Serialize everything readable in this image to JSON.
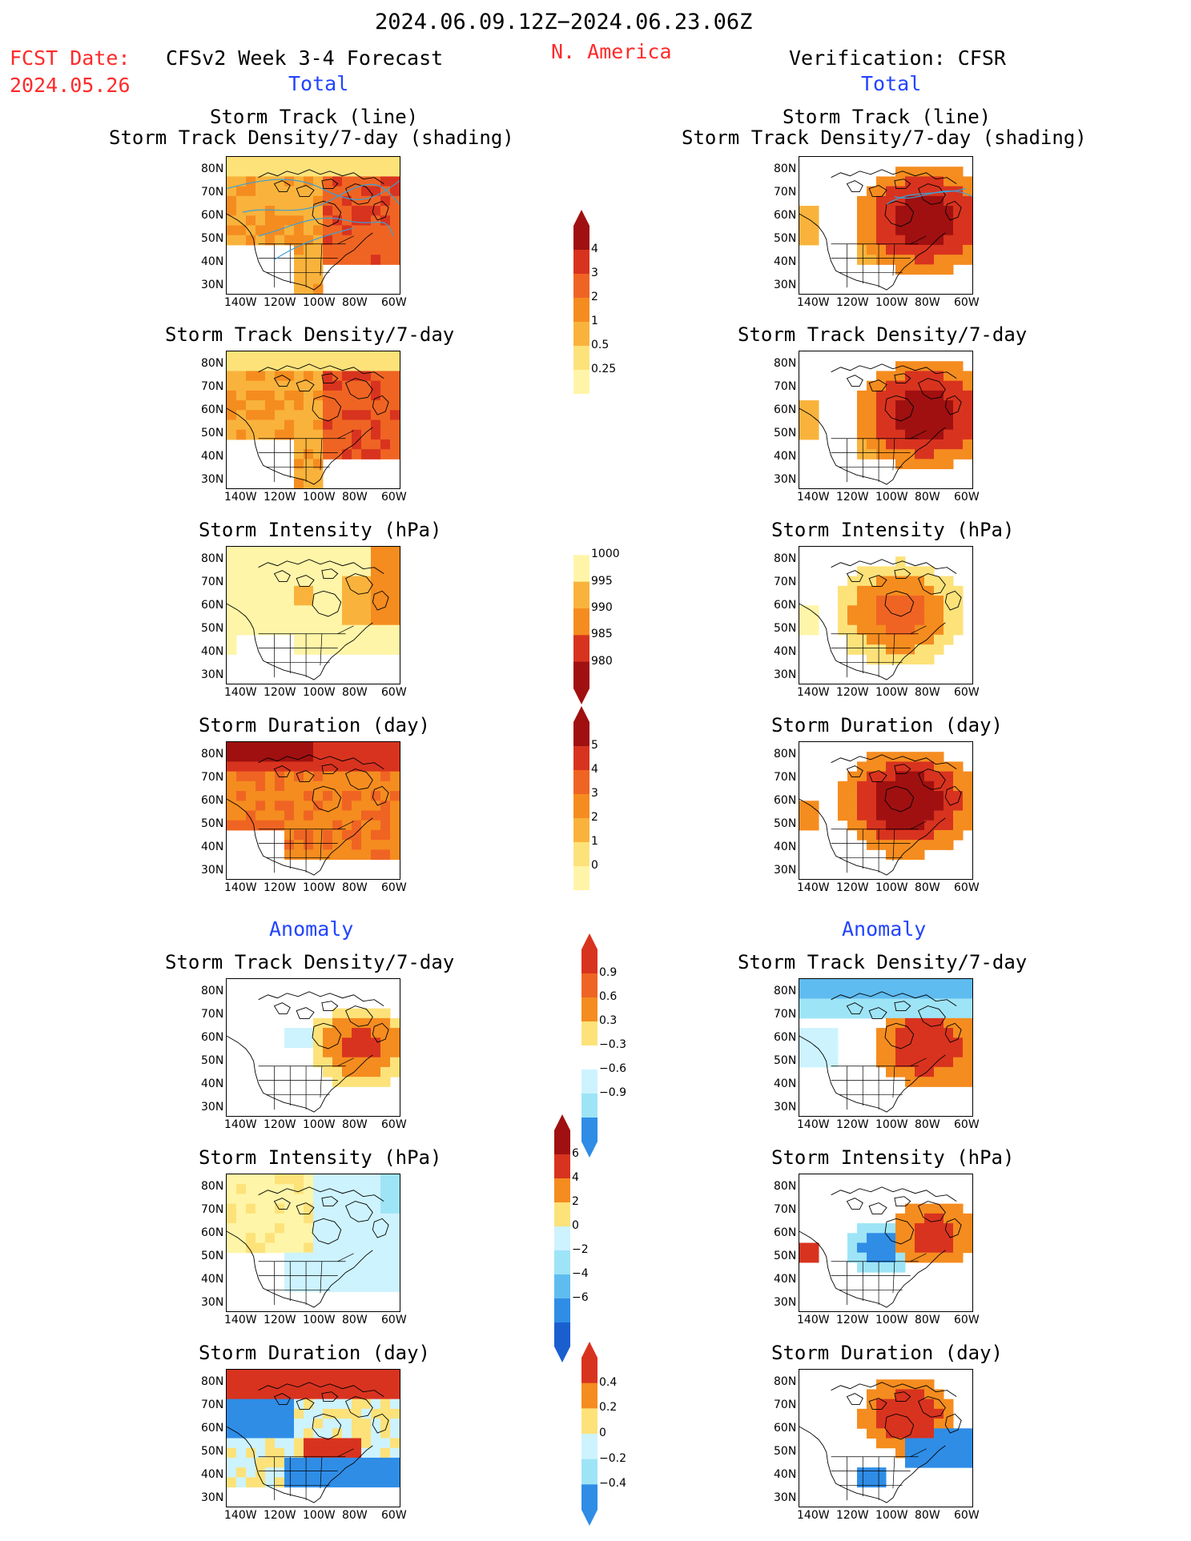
{
  "header": {
    "period": "2024.06.09.12Z−2024.06.23.06Z",
    "region": "N. America",
    "fcst_label": "FCST Date:",
    "fcst_date": "2024.05.26",
    "model": "CFSv2 Week 3-4 Forecast",
    "verification": "Verification: CFSR",
    "left_total": "Total",
    "right_total": "Total",
    "left_anomaly": "Anomaly",
    "right_anomaly": "Anomaly"
  },
  "axes": {
    "lat_labels": [
      "80N",
      "70N",
      "60N",
      "50N",
      "40N",
      "30N"
    ],
    "lon_labels": [
      "140W",
      "120W",
      "100W",
      "80W",
      "60W"
    ]
  },
  "panels": {
    "r1_title_a": "Storm Track (line)",
    "r1_title_b": "Storm Track Density/7-day (shading)",
    "r2_title": "Storm Track Density/7-day",
    "r3_title": "Storm Intensity (hPa)",
    "r4_title": "Storm Duration (day)",
    "r5_title": "Storm Track Density/7-day",
    "r6_title": "Storm Intensity (hPa)",
    "r7_title": "Storm Duration (day)"
  },
  "colorbars": {
    "density": [
      "4",
      "3",
      "2",
      "1",
      "0.5",
      "0.25"
    ],
    "intensity": [
      "1000",
      "995",
      "990",
      "985",
      "980"
    ],
    "duration": [
      "5",
      "4",
      "3",
      "2",
      "1",
      "0"
    ],
    "density_anom": [
      "0.9",
      "0.6",
      "0.3",
      "−0.3",
      "−0.6",
      "−0.9"
    ],
    "intensity_anom": [
      "6",
      "4",
      "2",
      "0",
      "−2",
      "−4",
      "−6"
    ],
    "duration_anom": [
      "0.4",
      "0.2",
      "0",
      "−0.2",
      "−0.4"
    ]
  },
  "colors": {
    "warm": [
      "#fff5a8",
      "#fde27a",
      "#f9b33c",
      "#f58c1f",
      "#ef6423",
      "#d8331f",
      "#a01010"
    ],
    "cool": [
      "#cdf3ff",
      "#9ee4f7",
      "#5fbcf0",
      "#2f8de6",
      "#1a5fcf"
    ],
    "track_line": "#3aa0d8",
    "title_blue": "#2244ff",
    "title_red": "#ff2a2a"
  }
}
